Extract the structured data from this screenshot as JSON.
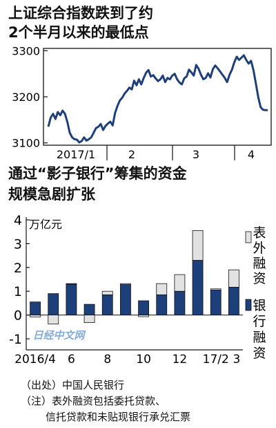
{
  "chart_data": [
    {
      "type": "line",
      "title_lines": [
        "上证综合指数跌到了约",
        "2个半月以来的最低点"
      ],
      "yticks": [
        3100,
        3200,
        3300
      ],
      "ylim": [
        3095,
        3305
      ],
      "xtick_labels": [
        "2017/1",
        "2",
        "3",
        "4"
      ],
      "series": [
        {
          "values": [
            3135,
            3155,
            3163,
            3152,
            3167,
            3160,
            3170,
            3163,
            3145,
            3122,
            3112,
            3108,
            3107,
            3101,
            3104,
            3112,
            3105,
            3108,
            3112,
            3122,
            3132,
            3135,
            3141,
            3128,
            3137,
            3142,
            3146,
            3138,
            3165,
            3180,
            3192,
            3198,
            3207,
            3213,
            3220,
            3216,
            3235,
            3225,
            3238,
            3227,
            3241,
            3252,
            3258,
            3244,
            3247,
            3240,
            3234,
            3238,
            3246,
            3232,
            3241,
            3238,
            3246,
            3250,
            3238,
            3231,
            3227,
            3240,
            3244,
            3259,
            3253,
            3246,
            3269,
            3261,
            3248,
            3238,
            3241,
            3251,
            3242,
            3260,
            3268,
            3262,
            3255,
            3248,
            3241,
            3232,
            3248,
            3259,
            3275,
            3287,
            3280,
            3285,
            3290,
            3280,
            3272,
            3278,
            3258,
            3230,
            3200,
            3178,
            3172,
            3171,
            3171
          ]
        }
      ]
    },
    {
      "type": "bar",
      "stacked": true,
      "title_lines": [
        "通过“影子银行”筹集的资金",
        "规模急剧扩张"
      ],
      "unit": "万亿元",
      "ylim": [
        -1,
        4
      ],
      "yticks": [
        "4",
        "3",
        "2",
        "1",
        "0",
        "-1"
      ],
      "x_labels": [
        "2016/4",
        "6",
        "8",
        "10",
        "12",
        "17/2",
        "3"
      ],
      "categories": [
        "2016/4",
        "5",
        "6",
        "7",
        "8",
        "9",
        "10",
        "11",
        "12",
        "2017/1",
        "2",
        "3"
      ],
      "series": [
        {
          "name": "银行融资",
          "color": "#1d3f7a",
          "values": [
            0.55,
            0.9,
            1.3,
            0.45,
            0.85,
            1.28,
            0.6,
            0.85,
            1.0,
            2.3,
            1.05,
            1.17
          ]
        },
        {
          "name": "表外融资",
          "color": "#e2e2e2",
          "values": [
            -0.08,
            -0.38,
            0.02,
            -0.32,
            0.15,
            0.04,
            -0.07,
            0.47,
            0.7,
            1.25,
            0.05,
            0.73
          ]
        }
      ],
      "legend": [
        {
          "label": "表外融资",
          "color": "#e2e2e2"
        },
        {
          "label": "银行融资",
          "color": "#1d3f7a"
        }
      ]
    }
  ],
  "watermark": "日经中文网",
  "source": "（出处）中国人民银行",
  "note_lines": [
    "（注）表外融资包括委托贷款、",
    "信托贷款和未贴现银行承兑汇票"
  ]
}
